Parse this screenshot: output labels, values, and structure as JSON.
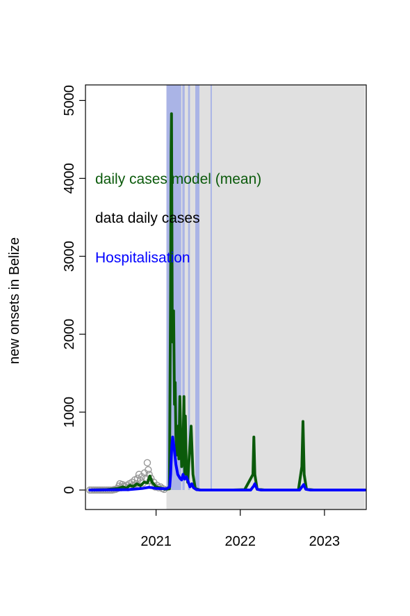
{
  "chart_data": {
    "type": "line",
    "title": "",
    "xlabel": "",
    "ylabel": "new onsets in Belize",
    "xlim": [
      "2020-03-01",
      "2023-07-01"
    ],
    "ylim": [
      -250,
      5200
    ],
    "x_ticks": [
      "2021",
      "2022",
      "2023"
    ],
    "y_ticks": [
      0,
      1000,
      2000,
      3000,
      4000,
      5000
    ],
    "grid": false,
    "shaded_region": {
      "start": "2021-02-15",
      "end": "2023-06-25",
      "color": "#e0e0e0"
    },
    "uncertainty_bands": {
      "color": "#aab4e6",
      "description_values": [
        {
          "start": "2021-02-15",
          "end": "2021-04-20",
          "upper": 5200
        },
        {
          "start": "2021-04-25",
          "end": "2021-05-05",
          "upper": 5200
        },
        {
          "start": "2021-05-20",
          "end": "2021-05-28",
          "upper": 5200
        },
        {
          "start": "2021-06-20",
          "end": "2021-07-08",
          "upper": 5200
        },
        {
          "start": "2021-08-25",
          "end": "2021-08-30",
          "upper": 5200
        }
      ]
    },
    "legend": {
      "placement": "top-left",
      "entries": [
        {
          "label": "daily cases model (mean)",
          "color": "#0b5a0b"
        },
        {
          "label": "data daily cases",
          "color": "#000000"
        },
        {
          "label": "Hospitalisation",
          "color": "#0000ff"
        }
      ]
    },
    "series": [
      {
        "name": "daily cases model (mean)",
        "color": "#0b5a0b",
        "points": [
          [
            "2020-03-20",
            0
          ],
          [
            "2020-06-01",
            5
          ],
          [
            "2020-07-20",
            20
          ],
          [
            "2020-08-10",
            40
          ],
          [
            "2020-08-25",
            25
          ],
          [
            "2020-09-10",
            60
          ],
          [
            "2020-09-25",
            45
          ],
          [
            "2020-10-10",
            80
          ],
          [
            "2020-10-25",
            55
          ],
          [
            "2020-11-10",
            100
          ],
          [
            "2020-11-25",
            90
          ],
          [
            "2020-12-05",
            180
          ],
          [
            "2020-12-15",
            100
          ],
          [
            "2021-01-01",
            40
          ],
          [
            "2021-02-10",
            10
          ],
          [
            "2021-02-28",
            15
          ],
          [
            "2021-03-05",
            2600
          ],
          [
            "2021-03-07",
            4350
          ],
          [
            "2021-03-09",
            4830
          ],
          [
            "2021-03-12",
            2300
          ],
          [
            "2021-03-15",
            1900
          ],
          [
            "2021-03-18",
            2300
          ],
          [
            "2021-03-22",
            1100
          ],
          [
            "2021-03-25",
            1380
          ],
          [
            "2021-03-28",
            700
          ],
          [
            "2021-04-02",
            450
          ],
          [
            "2021-04-06",
            820
          ],
          [
            "2021-04-10",
            400
          ],
          [
            "2021-04-14",
            1200
          ],
          [
            "2021-04-18",
            700
          ],
          [
            "2021-04-22",
            300
          ],
          [
            "2021-04-27",
            400
          ],
          [
            "2021-05-02",
            1200
          ],
          [
            "2021-05-05",
            200
          ],
          [
            "2021-05-08",
            950
          ],
          [
            "2021-05-12",
            300
          ],
          [
            "2021-05-18",
            100
          ],
          [
            "2021-05-25",
            450
          ],
          [
            "2021-06-02",
            820
          ],
          [
            "2021-06-10",
            200
          ],
          [
            "2021-06-20",
            20
          ],
          [
            "2021-07-10",
            0
          ],
          [
            "2021-12-01",
            0
          ],
          [
            "2022-01-20",
            5
          ],
          [
            "2022-02-25",
            200
          ],
          [
            "2022-03-01",
            680
          ],
          [
            "2022-03-05",
            200
          ],
          [
            "2022-03-15",
            10
          ],
          [
            "2022-04-15",
            0
          ],
          [
            "2022-09-10",
            0
          ],
          [
            "2022-09-25",
            300
          ],
          [
            "2022-09-30",
            880
          ],
          [
            "2022-10-05",
            200
          ],
          [
            "2022-10-15",
            10
          ],
          [
            "2022-11-15",
            0
          ],
          [
            "2023-06-25",
            0
          ]
        ]
      },
      {
        "name": "Hospitalisation",
        "color": "#0000ff",
        "points": [
          [
            "2020-03-20",
            0
          ],
          [
            "2020-09-01",
            5
          ],
          [
            "2020-11-01",
            20
          ],
          [
            "2020-12-01",
            35
          ],
          [
            "2020-12-15",
            30
          ],
          [
            "2021-01-01",
            20
          ],
          [
            "2021-02-15",
            15
          ],
          [
            "2021-03-01",
            40
          ],
          [
            "2021-03-05",
            200
          ],
          [
            "2021-03-10",
            560
          ],
          [
            "2021-03-14",
            680
          ],
          [
            "2021-03-20",
            550
          ],
          [
            "2021-03-28",
            330
          ],
          [
            "2021-04-05",
            200
          ],
          [
            "2021-04-15",
            150
          ],
          [
            "2021-04-22",
            130
          ],
          [
            "2021-04-28",
            200
          ],
          [
            "2021-05-05",
            140
          ],
          [
            "2021-05-12",
            170
          ],
          [
            "2021-05-20",
            110
          ],
          [
            "2021-05-28",
            40
          ],
          [
            "2021-06-05",
            80
          ],
          [
            "2021-06-12",
            30
          ],
          [
            "2021-06-25",
            5
          ],
          [
            "2021-07-15",
            0
          ],
          [
            "2022-02-15",
            0
          ],
          [
            "2022-02-28",
            50
          ],
          [
            "2022-03-05",
            80
          ],
          [
            "2022-03-15",
            10
          ],
          [
            "2022-04-01",
            0
          ],
          [
            "2022-09-15",
            0
          ],
          [
            "2022-09-28",
            50
          ],
          [
            "2022-10-03",
            70
          ],
          [
            "2022-10-12",
            10
          ],
          [
            "2022-11-01",
            0
          ],
          [
            "2023-06-25",
            0
          ]
        ]
      }
    ],
    "data_points": {
      "name": "data daily cases",
      "color": "#999999",
      "marker": "open-circle",
      "points": [
        [
          "2020-03-20",
          0
        ],
        [
          "2020-03-28",
          0
        ],
        [
          "2020-04-05",
          0
        ],
        [
          "2020-04-13",
          0
        ],
        [
          "2020-04-21",
          0
        ],
        [
          "2020-04-29",
          0
        ],
        [
          "2020-05-07",
          0
        ],
        [
          "2020-05-15",
          0
        ],
        [
          "2020-05-23",
          0
        ],
        [
          "2020-05-31",
          0
        ],
        [
          "2020-06-08",
          0
        ],
        [
          "2020-06-16",
          0
        ],
        [
          "2020-06-24",
          0
        ],
        [
          "2020-07-02",
          5
        ],
        [
          "2020-07-10",
          10
        ],
        [
          "2020-07-18",
          20
        ],
        [
          "2020-07-24",
          50
        ],
        [
          "2020-07-28",
          80
        ],
        [
          "2020-08-02",
          30
        ],
        [
          "2020-08-08",
          70
        ],
        [
          "2020-08-14",
          50
        ],
        [
          "2020-08-20",
          40
        ],
        [
          "2020-08-26",
          60
        ],
        [
          "2020-09-01",
          30
        ],
        [
          "2020-09-07",
          80
        ],
        [
          "2020-09-13",
          50
        ],
        [
          "2020-09-19",
          100
        ],
        [
          "2020-09-25",
          60
        ],
        [
          "2020-10-01",
          130
        ],
        [
          "2020-10-07",
          80
        ],
        [
          "2020-10-13",
          150
        ],
        [
          "2020-10-19",
          200
        ],
        [
          "2020-10-25",
          120
        ],
        [
          "2020-10-31",
          170
        ],
        [
          "2020-11-06",
          90
        ],
        [
          "2020-11-12",
          220
        ],
        [
          "2020-11-18",
          150
        ],
        [
          "2020-11-24",
          350
        ],
        [
          "2020-11-28",
          260
        ],
        [
          "2020-12-02",
          200
        ],
        [
          "2020-12-06",
          120
        ],
        [
          "2020-12-10",
          150
        ],
        [
          "2020-12-16",
          60
        ],
        [
          "2020-12-22",
          100
        ],
        [
          "2020-12-28",
          40
        ],
        [
          "2021-01-05",
          60
        ],
        [
          "2021-01-12",
          30
        ],
        [
          "2021-01-20",
          40
        ],
        [
          "2021-01-28",
          20
        ],
        [
          "2021-02-05",
          10
        ]
      ]
    }
  }
}
